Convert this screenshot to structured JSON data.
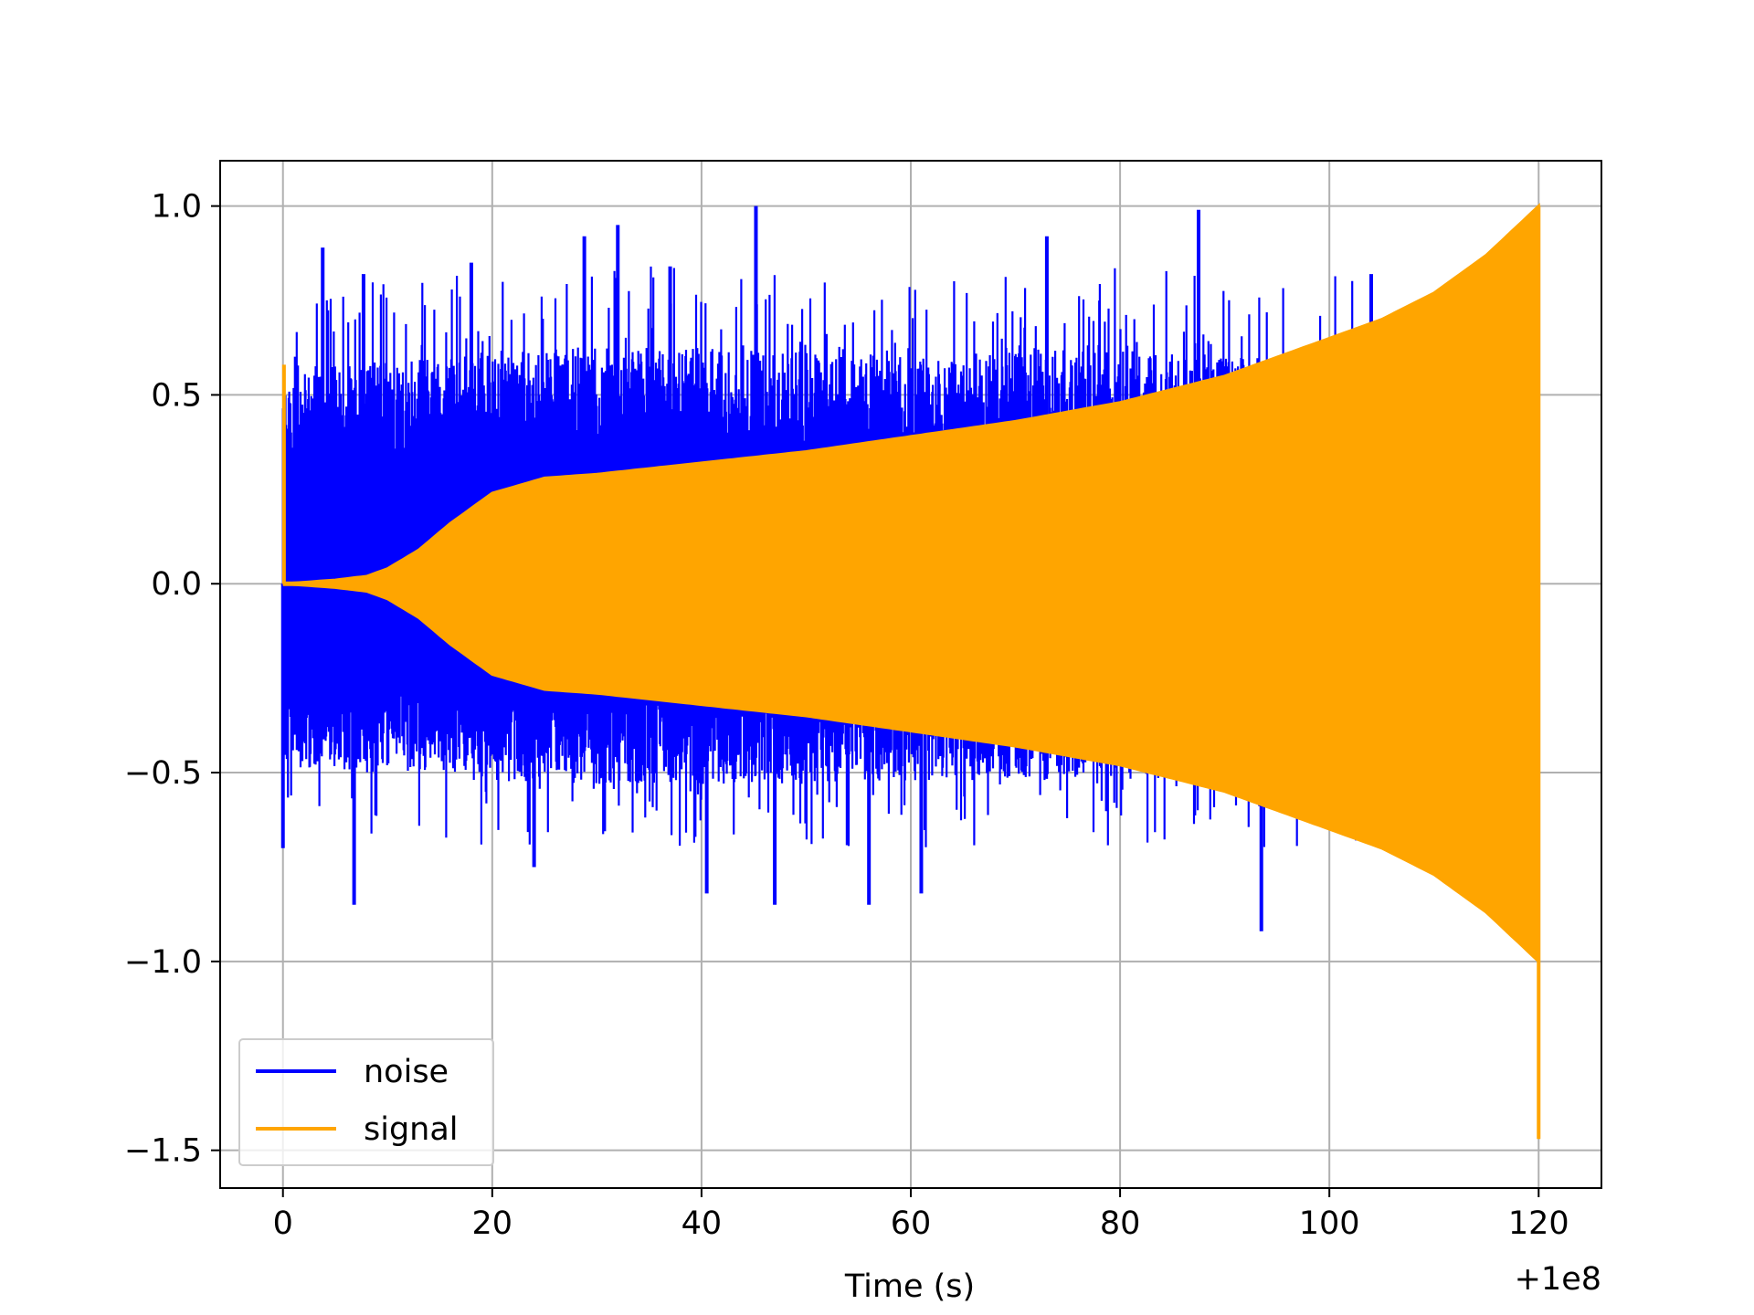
{
  "chart_data": {
    "type": "line",
    "title": "",
    "xlabel": "Time (s)",
    "ylabel": "",
    "x_offset_label": "+1e8",
    "xlim": [
      -6,
      126
    ],
    "ylim": [
      -1.6,
      1.12
    ],
    "xticks": [
      0,
      20,
      40,
      60,
      80,
      100,
      120
    ],
    "xtick_labels": [
      "0",
      "20",
      "40",
      "60",
      "80",
      "100",
      "120"
    ],
    "yticks": [
      1.0,
      0.5,
      0.0,
      -0.5,
      -1.0,
      -1.5
    ],
    "ytick_labels": [
      "1.0",
      "0.5",
      "0.0",
      "−0.5",
      "−1.0",
      "−1.5"
    ],
    "grid": true,
    "legend_position": "lower-left",
    "series": [
      {
        "name": "noise",
        "color": "#0000ff",
        "x_range": [
          0,
          120
        ],
        "envelope_x": [
          0,
          5,
          10,
          15,
          20,
          30,
          40,
          50,
          60,
          70,
          80,
          90,
          100,
          110,
          120
        ],
        "envelope_upper": [
          0.55,
          0.58,
          0.6,
          0.6,
          0.62,
          0.63,
          0.62,
          0.62,
          0.6,
          0.62,
          0.62,
          0.6,
          0.6,
          0.55,
          0.4
        ],
        "envelope_lower": [
          -0.48,
          -0.5,
          -0.5,
          -0.5,
          -0.52,
          -0.53,
          -0.53,
          -0.53,
          -0.52,
          -0.52,
          -0.52,
          -0.52,
          -0.52,
          -0.5,
          -0.4
        ],
        "peaks": [
          {
            "x": 0,
            "y": -0.7
          },
          {
            "x": 3.8,
            "y": 0.89
          },
          {
            "x": 6.8,
            "y": -0.85
          },
          {
            "x": 7.7,
            "y": 0.82
          },
          {
            "x": 18,
            "y": 0.85
          },
          {
            "x": 24,
            "y": -0.75
          },
          {
            "x": 28.8,
            "y": 0.92
          },
          {
            "x": 32,
            "y": 0.95
          },
          {
            "x": 37,
            "y": 0.84
          },
          {
            "x": 40.5,
            "y": -0.82
          },
          {
            "x": 45.2,
            "y": 1.0
          },
          {
            "x": 47,
            "y": -0.85
          },
          {
            "x": 56,
            "y": -0.85
          },
          {
            "x": 61,
            "y": -0.82
          },
          {
            "x": 73,
            "y": 0.92
          },
          {
            "x": 87.5,
            "y": 0.99
          },
          {
            "x": 93.5,
            "y": -0.92
          },
          {
            "x": 104,
            "y": 0.82
          }
        ]
      },
      {
        "name": "signal",
        "color": "#ffa500",
        "x_range": [
          0,
          120
        ],
        "envelope_x": [
          0,
          5,
          8,
          10,
          13,
          16,
          20,
          25,
          30,
          40,
          50,
          60,
          70,
          80,
          90,
          100,
          105,
          110,
          115,
          120
        ],
        "envelope_upper": [
          0.0,
          0.01,
          0.02,
          0.04,
          0.09,
          0.16,
          0.24,
          0.28,
          0.29,
          0.32,
          0.35,
          0.39,
          0.43,
          0.48,
          0.55,
          0.65,
          0.7,
          0.77,
          0.87,
          1.0
        ],
        "events": [
          {
            "x": 0.1,
            "y_max": 0.58,
            "y_min": 0.0
          },
          {
            "x": 120,
            "y_max": 1.0,
            "y_min": -1.47
          }
        ]
      }
    ]
  }
}
